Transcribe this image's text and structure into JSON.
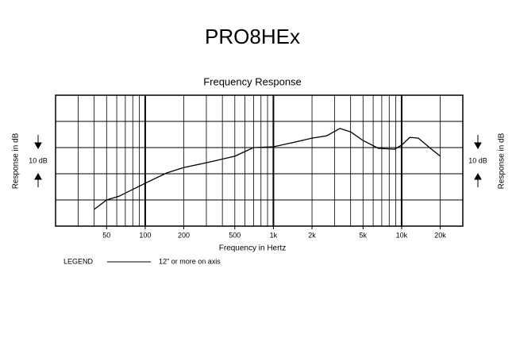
{
  "chart_data": {
    "type": "line",
    "title": "PRO8HEx",
    "subtitle": "Frequency Response",
    "x_label": "Frequency in Hertz",
    "y_label": "Response in dB",
    "scale_label": "10 dB",
    "legend_title": "LEGEND",
    "log_x": true,
    "xlim": [
      20,
      30000
    ],
    "ylim": [
      -30,
      20
    ],
    "xticks": [
      50,
      100,
      200,
      500,
      {
        "value": 1000,
        "label": "1k"
      },
      {
        "value": 2000,
        "label": "2k"
      },
      {
        "value": 5000,
        "label": "5k"
      },
      {
        "value": 10000,
        "label": "10k"
      },
      {
        "value": 20000,
        "label": "20k"
      }
    ],
    "xgrid": [
      30,
      40,
      50,
      60,
      70,
      80,
      90,
      100,
      200,
      300,
      400,
      500,
      600,
      700,
      800,
      900,
      1000,
      2000,
      3000,
      4000,
      5000,
      6000,
      7000,
      8000,
      9000,
      10000,
      20000
    ],
    "ygrid": [
      -20,
      -10,
      0,
      10
    ],
    "x": [
      40,
      50,
      63,
      100,
      147,
      200,
      300,
      500,
      700,
      1000,
      1470,
      2000,
      2600,
      3300,
      4000,
      5000,
      6600,
      8800,
      10000,
      11600,
      13500,
      16800,
      20000
    ],
    "series": [
      {
        "name": "12\" or more on axis",
        "color": "#000000",
        "values": [
          -23.6,
          -20,
          -18.5,
          -13.6,
          -9.7,
          -7.6,
          -5.8,
          -3.3,
          0,
          0.3,
          2.1,
          3.6,
          4.5,
          7.3,
          6,
          2.7,
          -0.3,
          -0.6,
          0.9,
          3.9,
          3.6,
          -0.3,
          -3.3
        ]
      }
    ]
  }
}
